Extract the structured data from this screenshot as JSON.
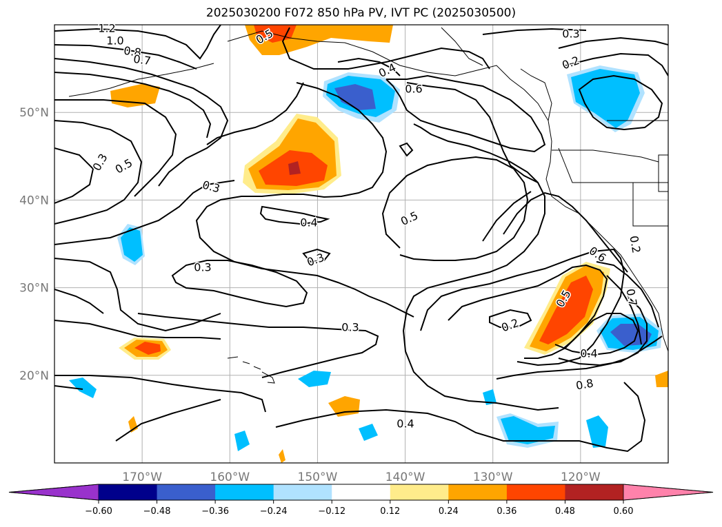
{
  "title": "2025030200 F072 850 hPa PV, IVT PC (2025030500)",
  "map": {
    "projection": "lat-lon",
    "lon_range": [
      -180,
      -110
    ],
    "lat_range": [
      10,
      60
    ],
    "lat_ticks": [
      {
        "value": 50,
        "label": "50°N"
      },
      {
        "value": 40,
        "label": "40°N"
      },
      {
        "value": 30,
        "label": "30°N"
      },
      {
        "value": 20,
        "label": "20°N"
      }
    ],
    "lon_ticks": [
      {
        "value": -170,
        "label": "170°W"
      },
      {
        "value": -160,
        "label": "160°W"
      },
      {
        "value": -150,
        "label": "150°W"
      },
      {
        "value": -140,
        "label": "140°W"
      },
      {
        "value": -130,
        "label": "130°W"
      },
      {
        "value": -120,
        "label": "120°W"
      }
    ],
    "grid": true,
    "contour_labels": [
      "1.2",
      "1.0",
      "0.8",
      "0.7",
      "0.5",
      "0.6",
      "0.4",
      "0.3",
      "0.2",
      "0.3",
      "0.5",
      "0.3",
      "0.4",
      "0.5",
      "0.3",
      "0.3",
      "0.3",
      "0.2",
      "0.4",
      "0.8",
      "0.4",
      "0.5",
      "0.6",
      "0.7",
      "0.2"
    ]
  },
  "colorbar": {
    "colors": [
      "#9932cc",
      "#00008b",
      "#3a5fcd",
      "#00bfff",
      "#b0e2ff",
      "#ffffff",
      "#ffec8b",
      "#ffa500",
      "#ff4500",
      "#b22222",
      "#ff82ab"
    ],
    "ticks": [
      "−0.60",
      "−0.48",
      "−0.36",
      "−0.24",
      "−0.12",
      "0.12",
      "0.24",
      "0.36",
      "0.48",
      "0.60"
    ]
  }
}
